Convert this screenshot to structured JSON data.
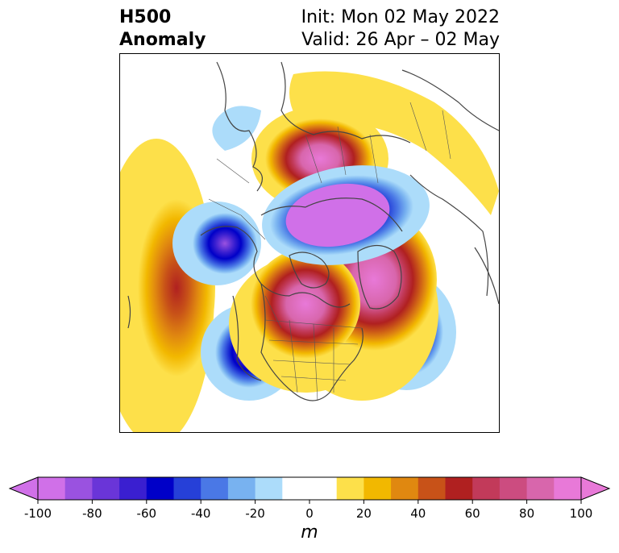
{
  "header": {
    "title_line1": "H500",
    "title_line2": "Anomaly",
    "init_text": "Init: Mon 02 May 2022",
    "valid_text": "Valid: 26 Apr – 02 May"
  },
  "colorbar": {
    "units": "m",
    "ticks": [
      "-100",
      "-80",
      "-60",
      "-40",
      "-20",
      "0",
      "20",
      "40",
      "60",
      "80",
      "100"
    ],
    "levels": [
      -100,
      -90,
      -80,
      -70,
      -60,
      -50,
      -40,
      -30,
      -20,
      -10,
      10,
      20,
      30,
      40,
      50,
      60,
      70,
      80,
      90,
      100
    ],
    "colors": [
      "#d070e8",
      "#9a52e0",
      "#6a35d8",
      "#3a1fd0",
      "#0000c8",
      "#2640d8",
      "#4a78e6",
      "#78b2f0",
      "#acdcfa",
      "#ffffff",
      "#ffffff",
      "#fde04a",
      "#f2b800",
      "#e08810",
      "#c85218",
      "#b02020",
      "#c23a5a",
      "#cc4c80",
      "#d866ac",
      "#e879d8"
    ],
    "under_color": "#d070e8",
    "over_color": "#e879d8"
  },
  "map": {
    "projection": "polar-stereographic",
    "region": "Northern Hemisphere"
  }
}
